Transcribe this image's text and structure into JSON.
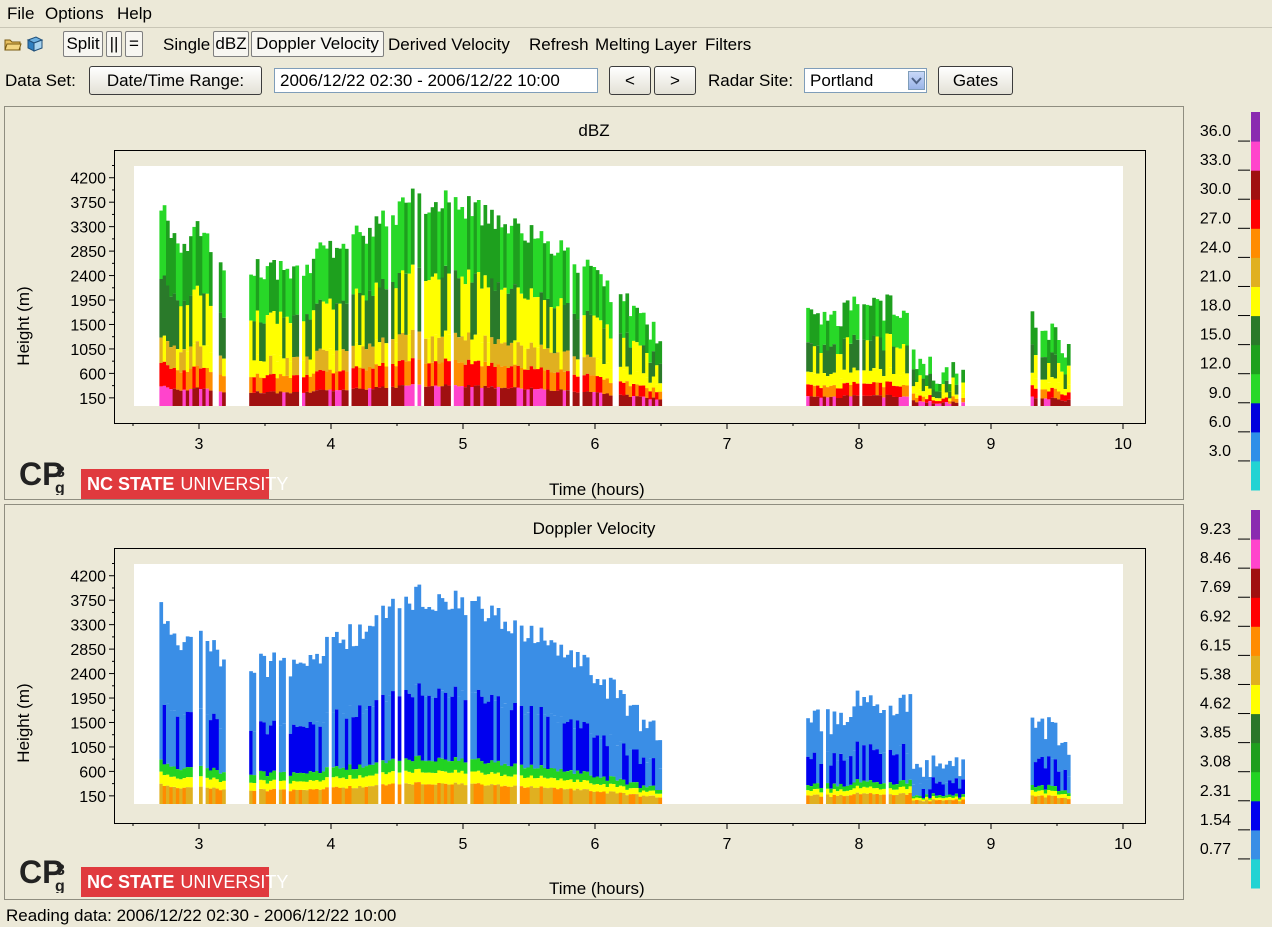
{
  "menu": {
    "items": [
      "File",
      "Options",
      "Help"
    ]
  },
  "toolbar": {
    "split_label": "Split",
    "vertical_label": "||",
    "horizontal_label": "=",
    "single_label": "Single",
    "dbz_label": "dBZ",
    "doppler_label": "Doppler Velocity",
    "derived_label": "Derived Velocity",
    "refresh_label": "Refresh",
    "melting_label": "Melting Layer",
    "filters_label": "Filters"
  },
  "dataset": {
    "label": "Data Set:",
    "range_button": "Date/Time Range:",
    "range_value": "2006/12/22 02:30 - 2006/12/22 10:00",
    "prev_label": "<",
    "next_label": ">",
    "site_label": "Radar Site:",
    "site_value": "Portland",
    "gates_label": "Gates"
  },
  "branding": {
    "cp3": "CPg³",
    "ncsu_bold": "NC STATE",
    "ncsu_light": "UNIVERSITY"
  },
  "colors": {
    "dbz": [
      "#22d3d3",
      "#2e8fe8",
      "#0000dd",
      "#28d828",
      "#1ea01e",
      "#2a7a2a",
      "#ffff00",
      "#e0b020",
      "#ff8c00",
      "#ff0000",
      "#a01010",
      "#ff44cc",
      "#8a2ab0"
    ],
    "vel": [
      "#22d3d3",
      "#3a8ee6",
      "#0000ee",
      "#22d322",
      "#1e9e1e",
      "#2a762a",
      "#ffff00",
      "#e0b020",
      "#ff8c00",
      "#ff0000",
      "#a01010",
      "#ff44cc",
      "#8a2ab0"
    ]
  },
  "chart_data": [
    {
      "type": "heatmap",
      "title": "dBZ",
      "xlabel": "Time (hours)",
      "ylabel": "Height (m)",
      "x_ticks": [
        3,
        4,
        5,
        6,
        7,
        8,
        9,
        10
      ],
      "y_ticks": [
        150,
        600,
        1050,
        1500,
        1950,
        2400,
        2850,
        3300,
        3750,
        4200
      ],
      "xlim": [
        2.5,
        10
      ],
      "ylim": [
        0,
        4600
      ],
      "legend_ticks": [
        "3.0",
        "6.0",
        "9.0",
        "12.0",
        "15.0",
        "18.0",
        "21.0",
        "24.0",
        "27.0",
        "30.0",
        "33.0",
        "36.0"
      ],
      "echo_segments": [
        {
          "x": [
            2.7,
            3.2
          ],
          "top": [
            3600,
            3000,
            3300,
            2500
          ]
        },
        {
          "x": [
            3.38,
            6.5
          ],
          "top": [
            2600,
            2500,
            2900,
            3300,
            3800,
            3700,
            3500,
            3100,
            2600,
            2000,
            1200
          ]
        },
        {
          "x": [
            7.6,
            8.4
          ],
          "top": [
            1600,
            1500,
            1900,
            1800,
            1900
          ]
        },
        {
          "x": [
            8.4,
            8.8
          ],
          "top": [
            800,
            700,
            600,
            700
          ]
        },
        {
          "x": [
            9.3,
            9.6
          ],
          "top": [
            1500,
            1400,
            1000
          ]
        }
      ]
    },
    {
      "type": "heatmap",
      "title": "Doppler Velocity",
      "xlabel": "Time (hours)",
      "ylabel": "Height (m)",
      "x_ticks": [
        3,
        4,
        5,
        6,
        7,
        8,
        9,
        10
      ],
      "y_ticks": [
        150,
        600,
        1050,
        1500,
        1950,
        2400,
        2850,
        3300,
        3750,
        4200
      ],
      "xlim": [
        2.5,
        10
      ],
      "ylim": [
        0,
        4600
      ],
      "legend_ticks": [
        "0.77",
        "1.54",
        "2.31",
        "3.08",
        "3.85",
        "4.62",
        "5.38",
        "6.15",
        "6.92",
        "7.69",
        "8.46",
        "9.23"
      ],
      "echo_segments": [
        {
          "x": [
            2.7,
            3.2
          ],
          "top": [
            3600,
            3000,
            3300,
            2500
          ]
        },
        {
          "x": [
            3.38,
            6.5
          ],
          "top": [
            2600,
            2500,
            2900,
            3300,
            3800,
            3700,
            3500,
            3100,
            2600,
            2000,
            1200
          ]
        },
        {
          "x": [
            7.6,
            8.4
          ],
          "top": [
            1600,
            1500,
            1900,
            1800,
            1900
          ]
        },
        {
          "x": [
            8.4,
            8.8
          ],
          "top": [
            800,
            700,
            600,
            700
          ]
        },
        {
          "x": [
            9.3,
            9.6
          ],
          "top": [
            1500,
            1400,
            1000
          ]
        }
      ]
    }
  ],
  "status": "Reading data: 2006/12/22 02:30 - 2006/12/22 10:00"
}
